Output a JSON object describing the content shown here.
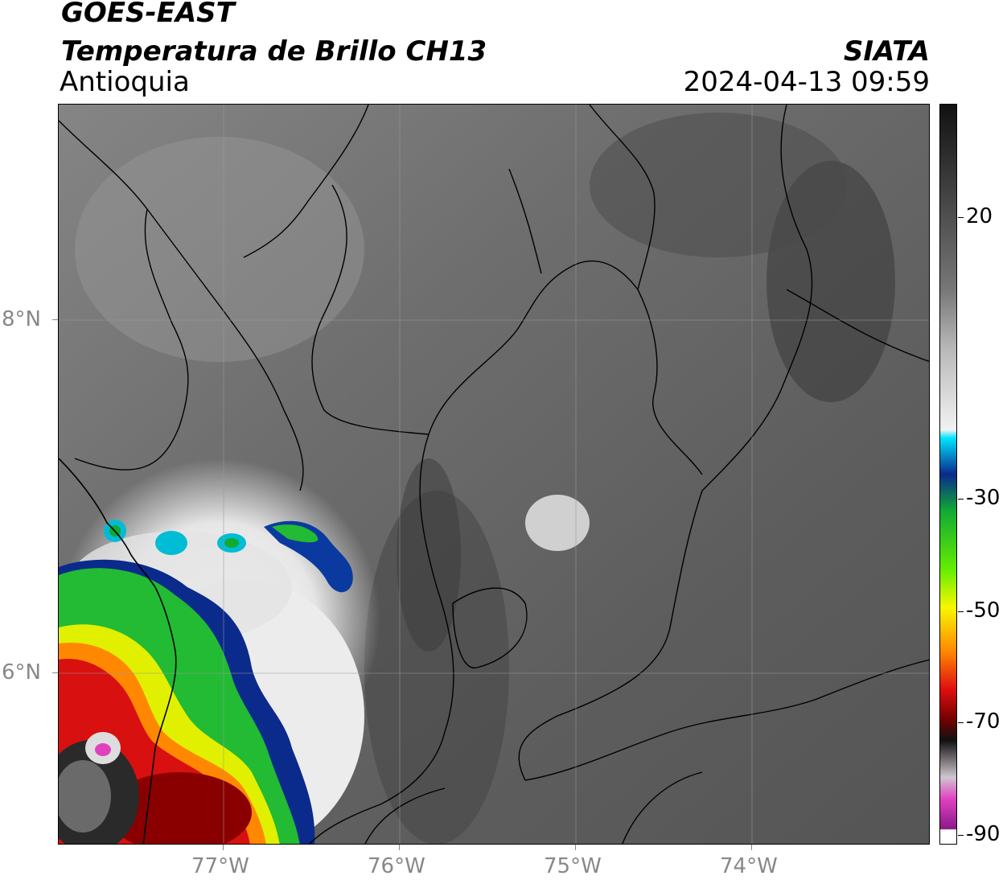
{
  "header": {
    "satellite": "GOES-EAST",
    "product": "Temperatura de Brillo CH13",
    "region": "Antioquia",
    "agency": "SIATA",
    "datetime": "2024-04-13 09:59"
  },
  "axes": {
    "longitudes": [
      "77°W",
      "76°W",
      "75°W",
      "74°W"
    ],
    "latitudes": [
      "8°N",
      "6°N"
    ]
  },
  "colorbar": {
    "labels": [
      "20",
      "-30",
      "-50",
      "-70",
      "-90"
    ],
    "units": "",
    "colors": {
      "warm_gray": "#6b6b6b",
      "white": "#f0f0f0",
      "cyan": "#00e5ff",
      "blue": "#0a2a8c",
      "green": "#00cc33",
      "yellow": "#f7f700",
      "orange": "#ff8800",
      "red": "#e01010",
      "darkred": "#7a0000",
      "black": "#111111",
      "magenta": "#e040c0",
      "purple": "#8a1a8a"
    }
  }
}
